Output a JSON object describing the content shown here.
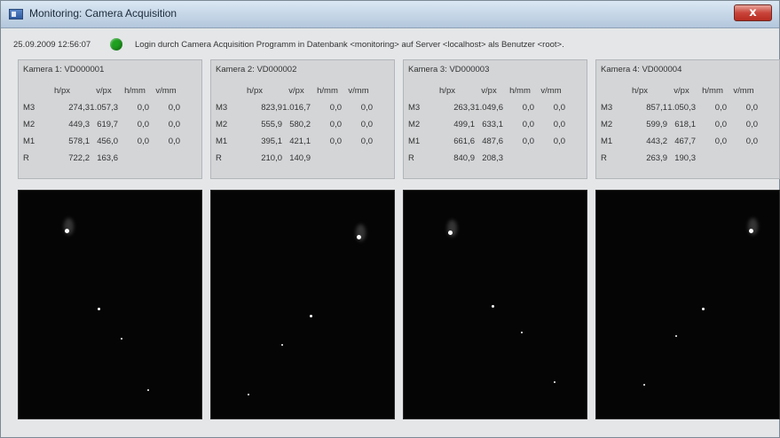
{
  "window": {
    "title": "Monitoring: Camera Acquisition",
    "close_label": "x"
  },
  "status": {
    "timestamp": "25.09.2009 12:56:07",
    "indicator_color": "#1fa01f",
    "message": "Login durch Camera Acquisition Programm in Datenbank <monitoring> auf Server <localhost> als Benutzer <root>."
  },
  "columns": [
    "h/px",
    "v/px",
    "h/mm",
    "v/mm"
  ],
  "cameras": [
    {
      "title": "Kamera 1:  VD000001",
      "rows": [
        {
          "label": "M3",
          "h_px": "274,3",
          "v_px": "1.057,3",
          "h_mm": "0,0",
          "v_mm": "0,0"
        },
        {
          "label": "M2",
          "h_px": "449,3",
          "v_px": "619,7",
          "h_mm": "0,0",
          "v_mm": "0,0"
        },
        {
          "label": "M1",
          "h_px": "578,1",
          "v_px": "456,0",
          "h_mm": "0,0",
          "v_mm": "0,0"
        },
        {
          "label": "R",
          "h_px": "722,2",
          "v_px": "163,6",
          "h_mm": "",
          "v_mm": ""
        }
      ]
    },
    {
      "title": "Kamera 2:  VD000002",
      "rows": [
        {
          "label": "M3",
          "h_px": "823,9",
          "v_px": "1.016,7",
          "h_mm": "0,0",
          "v_mm": "0,0"
        },
        {
          "label": "M2",
          "h_px": "555,9",
          "v_px": "580,2",
          "h_mm": "0,0",
          "v_mm": "0,0"
        },
        {
          "label": "M1",
          "h_px": "395,1",
          "v_px": "421,1",
          "h_mm": "0,0",
          "v_mm": "0,0"
        },
        {
          "label": "R",
          "h_px": "210,0",
          "v_px": "140,9",
          "h_mm": "",
          "v_mm": ""
        }
      ]
    },
    {
      "title": "Kamera 3:  VD000003",
      "rows": [
        {
          "label": "M3",
          "h_px": "263,3",
          "v_px": "1.049,6",
          "h_mm": "0,0",
          "v_mm": "0,0"
        },
        {
          "label": "M2",
          "h_px": "499,1",
          "v_px": "633,1",
          "h_mm": "0,0",
          "v_mm": "0,0"
        },
        {
          "label": "M1",
          "h_px": "661,6",
          "v_px": "487,6",
          "h_mm": "0,0",
          "v_mm": "0,0"
        },
        {
          "label": "R",
          "h_px": "840,9",
          "v_px": "208,3",
          "h_mm": "",
          "v_mm": ""
        }
      ]
    },
    {
      "title": "Kamera 4:  VD000004",
      "rows": [
        {
          "label": "M3",
          "h_px": "857,1",
          "v_px": "1.050,3",
          "h_mm": "0,0",
          "v_mm": "0,0"
        },
        {
          "label": "M2",
          "h_px": "599,9",
          "v_px": "618,1",
          "h_mm": "0,0",
          "v_mm": "0,0"
        },
        {
          "label": "M1",
          "h_px": "443,2",
          "v_px": "467,7",
          "h_mm": "0,0",
          "v_mm": "0,0"
        },
        {
          "label": "R",
          "h_px": "263,9",
          "v_px": "190,3",
          "h_mm": "",
          "v_mm": ""
        }
      ]
    }
  ]
}
